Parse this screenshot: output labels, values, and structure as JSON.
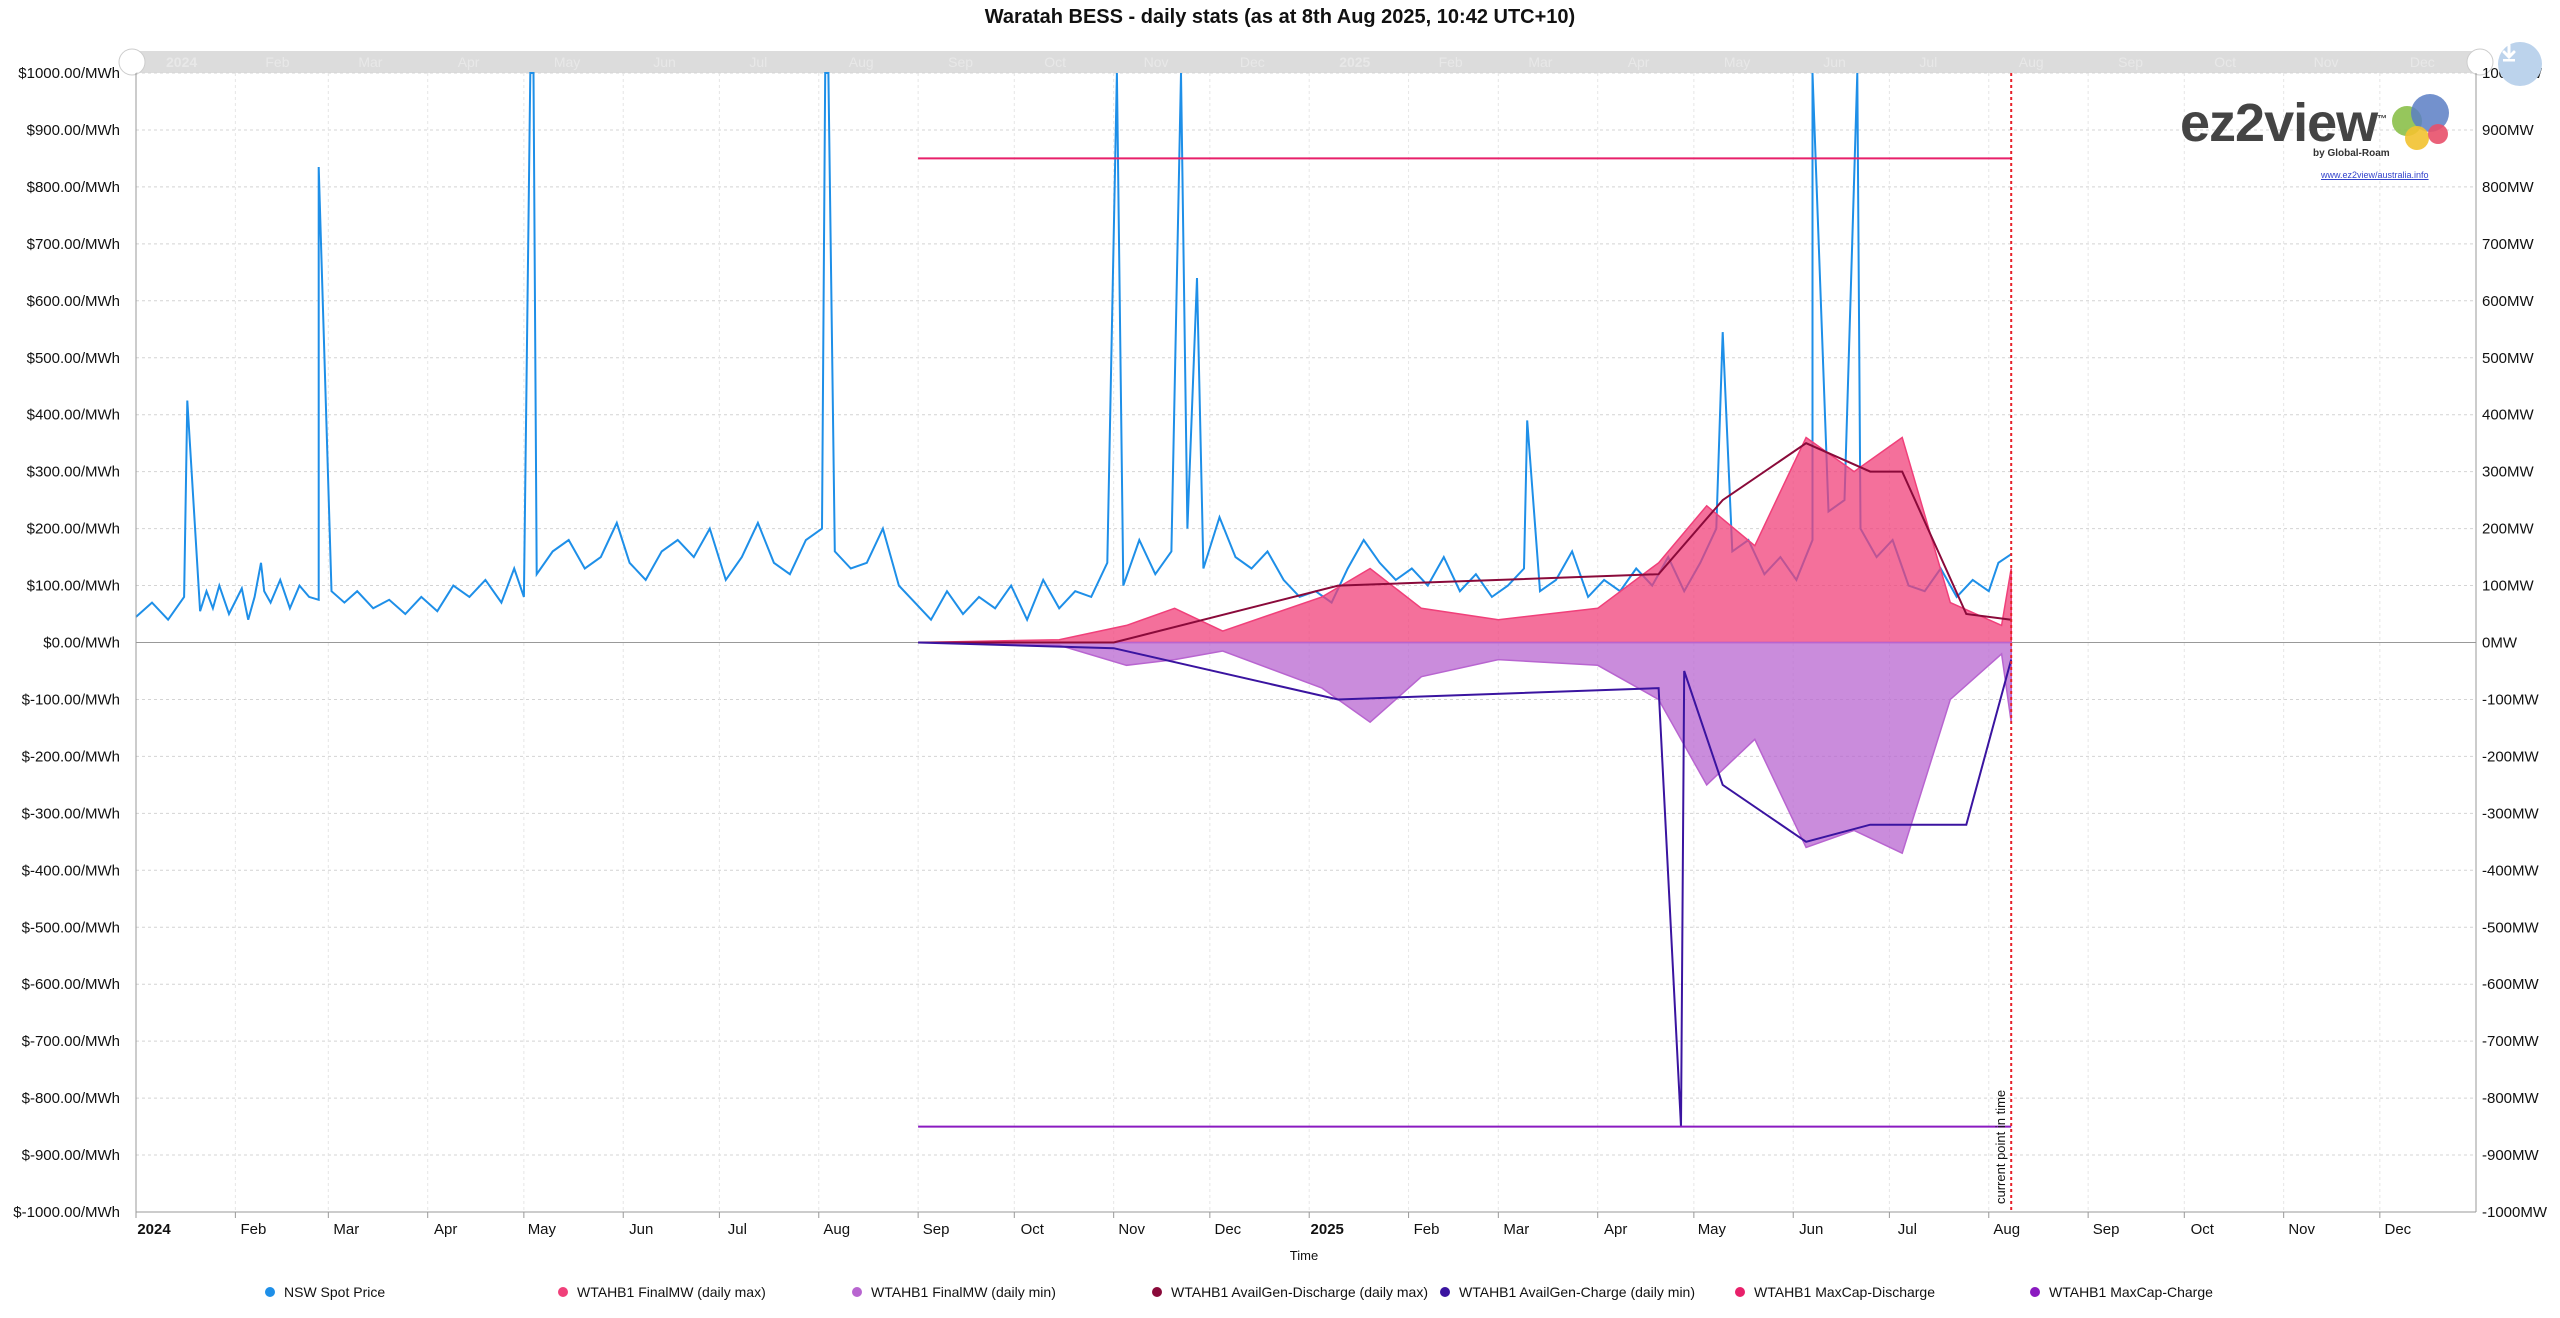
{
  "title": "Waratah BESS - daily stats (as at 8th Aug 2025, 10:42 UTC+10)",
  "logo": {
    "brand": "ez2view",
    "trademark": "™",
    "sub": "by Global-Roam",
    "link": "www.ez2view/australia.info"
  },
  "download_icon": "download-arrow-icon",
  "chart_data": {
    "type": "line",
    "title": "Waratah BESS - daily stats (as at 8th Aug 2025, 10:42 UTC+10)",
    "xlabel": "Time",
    "x_range": [
      "2024-01-01",
      "2025-12-31"
    ],
    "y_left": {
      "unit": "$/MWh",
      "ylim": [
        -1000,
        1000
      ],
      "ticks": [
        "$1000.00/MWh",
        "$900.00/MWh",
        "$800.00/MWh",
        "$700.00/MWh",
        "$600.00/MWh",
        "$500.00/MWh",
        "$400.00/MWh",
        "$300.00/MWh",
        "$200.00/MWh",
        "$100.00/MWh",
        "$0.00/MWh",
        "$-100.00/MWh",
        "$-200.00/MWh",
        "$-300.00/MWh",
        "$-400.00/MWh",
        "$-500.00/MWh",
        "$-600.00/MWh",
        "$-700.00/MWh",
        "$-800.00/MWh",
        "$-900.00/MWh",
        "$-1000.00/MWh"
      ]
    },
    "y_right": {
      "unit": "MW",
      "ylim": [
        -1000,
        1000
      ],
      "ticks": [
        "1000MW",
        "900MW",
        "800MW",
        "700MW",
        "600MW",
        "500MW",
        "400MW",
        "300MW",
        "200MW",
        "100MW",
        "0MW",
        "-100MW",
        "-200MW",
        "-300MW",
        "-400MW",
        "-500MW",
        "-600MW",
        "-700MW",
        "-800MW",
        "-900MW",
        "-1000MW"
      ]
    },
    "x_ticks": [
      {
        "label": "2024",
        "date": "2024-01-01",
        "bold": true
      },
      {
        "label": "Feb",
        "date": "2024-02-01"
      },
      {
        "label": "Mar",
        "date": "2024-03-01"
      },
      {
        "label": "Apr",
        "date": "2024-04-01"
      },
      {
        "label": "May",
        "date": "2024-05-01"
      },
      {
        "label": "Jun",
        "date": "2024-06-01"
      },
      {
        "label": "Jul",
        "date": "2024-07-01"
      },
      {
        "label": "Aug",
        "date": "2024-08-01"
      },
      {
        "label": "Sep",
        "date": "2024-09-01"
      },
      {
        "label": "Oct",
        "date": "2024-10-01"
      },
      {
        "label": "Nov",
        "date": "2024-11-01"
      },
      {
        "label": "Dec",
        "date": "2024-12-01"
      },
      {
        "label": "2025",
        "date": "2025-01-01",
        "bold": true
      },
      {
        "label": "Feb",
        "date": "2025-02-01"
      },
      {
        "label": "Mar",
        "date": "2025-03-01"
      },
      {
        "label": "Apr",
        "date": "2025-04-01"
      },
      {
        "label": "May",
        "date": "2025-05-01"
      },
      {
        "label": "Jun",
        "date": "2025-06-01"
      },
      {
        "label": "Jul",
        "date": "2025-07-01"
      },
      {
        "label": "Aug",
        "date": "2025-08-01"
      },
      {
        "label": "Sep",
        "date": "2025-09-01"
      },
      {
        "label": "Oct",
        "date": "2025-10-01"
      },
      {
        "label": "Nov",
        "date": "2025-11-01"
      },
      {
        "label": "Dec",
        "date": "2025-12-01"
      }
    ],
    "current_time": {
      "date": "2025-08-08",
      "label": "current point in time",
      "color": "#e8202a"
    },
    "grid": true,
    "legend_position": "bottom",
    "series": [
      {
        "name": "NSW Spot Price",
        "color": "#1e8fe8",
        "axis": "left",
        "style": "line",
        "points": [
          [
            "2024-01-01",
            45
          ],
          [
            "2024-01-06",
            70
          ],
          [
            "2024-01-11",
            40
          ],
          [
            "2024-01-16",
            80
          ],
          [
            "2024-01-21",
            55
          ],
          [
            "2024-01-23",
            90
          ],
          [
            "2024-01-25",
            60
          ],
          [
            "2024-01-27",
            100
          ],
          [
            "2024-01-30",
            50
          ],
          [
            "2024-02-03",
            95
          ],
          [
            "2024-02-05",
            40
          ],
          [
            "2024-02-07",
            80
          ],
          [
            "2024-02-09",
            140
          ],
          [
            "2024-02-10",
            90
          ],
          [
            "2024-02-12",
            70
          ],
          [
            "2024-02-15",
            110
          ],
          [
            "2024-02-18",
            60
          ],
          [
            "2024-02-21",
            100
          ],
          [
            "2024-02-24",
            80
          ],
          [
            "2024-02-27",
            75
          ],
          [
            "2024-03-02",
            90
          ],
          [
            "2024-03-06",
            70
          ],
          [
            "2024-03-10",
            90
          ],
          [
            "2024-03-15",
            60
          ],
          [
            "2024-03-20",
            75
          ],
          [
            "2024-03-25",
            50
          ],
          [
            "2024-03-30",
            80
          ],
          [
            "2024-04-04",
            55
          ],
          [
            "2024-04-09",
            100
          ],
          [
            "2024-04-14",
            80
          ],
          [
            "2024-04-19",
            110
          ],
          [
            "2024-04-24",
            70
          ],
          [
            "2024-04-28",
            130
          ],
          [
            "2024-05-01",
            80
          ],
          [
            "2024-05-05",
            120
          ],
          [
            "2024-05-10",
            160
          ],
          [
            "2024-05-15",
            180
          ],
          [
            "2024-05-20",
            130
          ],
          [
            "2024-05-25",
            150
          ],
          [
            "2024-05-30",
            210
          ],
          [
            "2024-06-03",
            140
          ],
          [
            "2024-06-08",
            110
          ],
          [
            "2024-06-13",
            160
          ],
          [
            "2024-06-18",
            180
          ],
          [
            "2024-06-23",
            150
          ],
          [
            "2024-06-28",
            200
          ],
          [
            "2024-07-03",
            110
          ],
          [
            "2024-07-08",
            150
          ],
          [
            "2024-07-13",
            210
          ],
          [
            "2024-07-18",
            140
          ],
          [
            "2024-07-23",
            120
          ],
          [
            "2024-07-28",
            180
          ],
          [
            "2024-08-02",
            200
          ],
          [
            "2024-08-06",
            160
          ],
          [
            "2024-08-11",
            130
          ],
          [
            "2024-08-16",
            140
          ],
          [
            "2024-08-21",
            200
          ],
          [
            "2024-08-26",
            100
          ],
          [
            "2024-08-31",
            70
          ],
          [
            "2024-09-05",
            40
          ],
          [
            "2024-09-10",
            90
          ],
          [
            "2024-09-15",
            50
          ],
          [
            "2024-09-20",
            80
          ],
          [
            "2024-09-25",
            60
          ],
          [
            "2024-09-30",
            100
          ],
          [
            "2024-10-05",
            40
          ],
          [
            "2024-10-10",
            110
          ],
          [
            "2024-10-15",
            60
          ],
          [
            "2024-10-20",
            90
          ],
          [
            "2024-10-25",
            80
          ],
          [
            "2024-10-30",
            140
          ],
          [
            "2024-11-04",
            100
          ],
          [
            "2024-11-09",
            180
          ],
          [
            "2024-11-14",
            120
          ],
          [
            "2024-11-19",
            160
          ],
          [
            "2024-11-24",
            200
          ],
          [
            "2024-11-29",
            130
          ],
          [
            "2024-12-04",
            220
          ],
          [
            "2024-12-09",
            150
          ],
          [
            "2024-12-14",
            130
          ],
          [
            "2024-12-19",
            160
          ],
          [
            "2024-12-24",
            110
          ],
          [
            "2024-12-29",
            80
          ],
          [
            "2025-01-03",
            90
          ],
          [
            "2025-01-08",
            70
          ],
          [
            "2025-01-13",
            130
          ],
          [
            "2025-01-18",
            180
          ],
          [
            "2025-01-23",
            140
          ],
          [
            "2025-01-28",
            110
          ],
          [
            "2025-02-02",
            130
          ],
          [
            "2025-02-07",
            100
          ],
          [
            "2025-02-12",
            150
          ],
          [
            "2025-02-17",
            90
          ],
          [
            "2025-02-22",
            120
          ],
          [
            "2025-02-27",
            80
          ],
          [
            "2025-03-04",
            100
          ],
          [
            "2025-03-09",
            130
          ],
          [
            "2025-03-14",
            90
          ],
          [
            "2025-03-19",
            110
          ],
          [
            "2025-03-24",
            160
          ],
          [
            "2025-03-29",
            80
          ],
          [
            "2025-04-03",
            110
          ],
          [
            "2025-04-08",
            90
          ],
          [
            "2025-04-13",
            130
          ],
          [
            "2025-04-18",
            100
          ],
          [
            "2025-04-23",
            150
          ],
          [
            "2025-04-28",
            90
          ],
          [
            "2025-05-03",
            140
          ],
          [
            "2025-05-08",
            200
          ],
          [
            "2025-05-13",
            160
          ],
          [
            "2025-05-18",
            180
          ],
          [
            "2025-05-23",
            120
          ],
          [
            "2025-05-28",
            150
          ],
          [
            "2025-06-02",
            110
          ],
          [
            "2025-06-07",
            180
          ],
          [
            "2025-06-12",
            230
          ],
          [
            "2025-06-17",
            250
          ],
          [
            "2025-06-22",
            200
          ],
          [
            "2025-06-27",
            150
          ],
          [
            "2025-07-02",
            180
          ],
          [
            "2025-07-07",
            100
          ],
          [
            "2025-07-12",
            90
          ],
          [
            "2025-07-17",
            130
          ],
          [
            "2025-07-22",
            80
          ],
          [
            "2025-07-27",
            110
          ],
          [
            "2025-08-01",
            90
          ],
          [
            "2025-08-04",
            140
          ],
          [
            "2025-08-08",
            155
          ]
        ],
        "spikes": [
          [
            "2024-01-17",
            425
          ],
          [
            "2024-02-27",
            835
          ],
          [
            "2024-05-03",
            1000
          ],
          [
            "2024-05-04",
            1000
          ],
          [
            "2024-08-03",
            1000
          ],
          [
            "2024-08-04",
            1000
          ],
          [
            "2024-11-02",
            1000
          ],
          [
            "2024-11-22",
            1000
          ],
          [
            "2024-11-27",
            640
          ],
          [
            "2025-03-10",
            390
          ],
          [
            "2025-05-10",
            545
          ],
          [
            "2025-06-07",
            1000
          ],
          [
            "2025-06-21",
            1000
          ]
        ]
      },
      {
        "name": "WTAHB1 FinalMW (daily max)",
        "color": "#f0407a",
        "axis": "right",
        "style": "area-positive",
        "points": [
          [
            "2024-09-01",
            0
          ],
          [
            "2024-10-15",
            5
          ],
          [
            "2024-11-05",
            30
          ],
          [
            "2024-11-20",
            60
          ],
          [
            "2024-12-05",
            20
          ],
          [
            "2025-01-05",
            80
          ],
          [
            "2025-01-20",
            130
          ],
          [
            "2025-02-05",
            60
          ],
          [
            "2025-03-01",
            40
          ],
          [
            "2025-04-01",
            60
          ],
          [
            "2025-04-20",
            140
          ],
          [
            "2025-05-05",
            240
          ],
          [
            "2025-05-20",
            170
          ],
          [
            "2025-06-05",
            360
          ],
          [
            "2025-06-20",
            300
          ],
          [
            "2025-07-05",
            360
          ],
          [
            "2025-07-20",
            70
          ],
          [
            "2025-08-05",
            30
          ],
          [
            "2025-08-08",
            130
          ]
        ]
      },
      {
        "name": "WTAHB1 FinalMW (daily min)",
        "color": "#b865d0",
        "axis": "right",
        "style": "area-negative",
        "points": [
          [
            "2024-09-01",
            0
          ],
          [
            "2024-10-15",
            -5
          ],
          [
            "2024-11-05",
            -40
          ],
          [
            "2024-11-20",
            -30
          ],
          [
            "2024-12-05",
            -15
          ],
          [
            "2025-01-05",
            -80
          ],
          [
            "2025-01-20",
            -140
          ],
          [
            "2025-02-05",
            -60
          ],
          [
            "2025-03-01",
            -30
          ],
          [
            "2025-04-01",
            -40
          ],
          [
            "2025-04-20",
            -100
          ],
          [
            "2025-05-05",
            -250
          ],
          [
            "2025-05-20",
            -170
          ],
          [
            "2025-06-05",
            -360
          ],
          [
            "2025-06-20",
            -330
          ],
          [
            "2025-07-05",
            -370
          ],
          [
            "2025-07-20",
            -100
          ],
          [
            "2025-08-05",
            -20
          ],
          [
            "2025-08-08",
            -140
          ]
        ]
      },
      {
        "name": "WTAHB1 AvailGen-Discharge (daily max)",
        "color": "#8a0a3a",
        "axis": "right",
        "style": "line",
        "points": [
          [
            "2024-09-01",
            0
          ],
          [
            "2024-11-01",
            0
          ],
          [
            "2025-01-10",
            100
          ],
          [
            "2025-04-20",
            120
          ],
          [
            "2025-05-10",
            250
          ],
          [
            "2025-06-05",
            350
          ],
          [
            "2025-06-25",
            300
          ],
          [
            "2025-07-05",
            300
          ],
          [
            "2025-07-25",
            50
          ],
          [
            "2025-08-08",
            40
          ]
        ]
      },
      {
        "name": "WTAHB1 AvailGen-Charge (daily min)",
        "color": "#3a14a0",
        "axis": "right",
        "style": "line",
        "points": [
          [
            "2024-09-01",
            0
          ],
          [
            "2024-11-01",
            -10
          ],
          [
            "2025-01-10",
            -100
          ],
          [
            "2025-04-20",
            -80
          ],
          [
            "2025-04-27",
            -850
          ],
          [
            "2025-04-28",
            -50
          ],
          [
            "2025-05-10",
            -250
          ],
          [
            "2025-06-05",
            -350
          ],
          [
            "2025-06-25",
            -320
          ],
          [
            "2025-07-10",
            -320
          ],
          [
            "2025-07-25",
            -320
          ],
          [
            "2025-08-08",
            -30
          ]
        ]
      },
      {
        "name": "WTAHB1 MaxCap-Discharge",
        "color": "#e8206a",
        "axis": "right",
        "style": "line",
        "points": [
          [
            "2024-09-01",
            850
          ],
          [
            "2025-08-08",
            850
          ]
        ]
      },
      {
        "name": "WTAHB1 MaxCap-Charge",
        "color": "#8a1ac0",
        "axis": "right",
        "style": "line",
        "points": [
          [
            "2024-09-01",
            -850
          ],
          [
            "2025-08-08",
            -850
          ]
        ]
      }
    ]
  }
}
